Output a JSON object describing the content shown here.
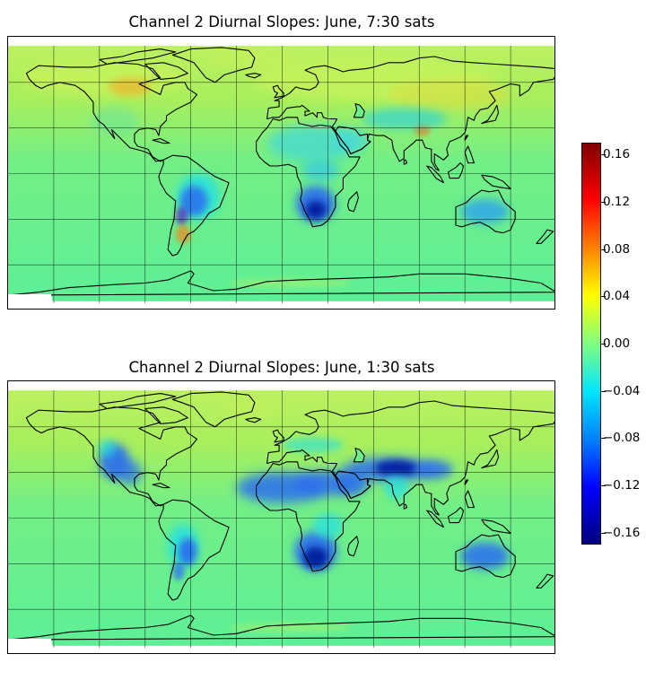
{
  "panels": [
    {
      "title": "Channel 2 Diurnal Slopes: June, 7:30 sats"
    },
    {
      "title": "Channel 2 Diurnal Slopes: June, 1:30 sats"
    }
  ],
  "colorbar": {
    "colormap": "jet",
    "range": [
      -0.17,
      0.17
    ],
    "ticks": [
      "0.16",
      "0.12",
      "0.08",
      "0.04",
      "0.00",
      "−0.04",
      "−0.08",
      "−0.12",
      "−0.16"
    ],
    "tick_values": [
      0.16,
      0.12,
      0.08,
      0.04,
      0.0,
      -0.04,
      -0.08,
      -0.12,
      -0.16
    ]
  },
  "colors": {
    "ocean_background": "#6ef08a",
    "northern_yellow": "#c6f25a",
    "cyan": "#22e0e6",
    "blue": "#2a6cf0",
    "dark_blue": "#001a9c",
    "coastline": "#000000",
    "gridline": "#000000"
  }
}
